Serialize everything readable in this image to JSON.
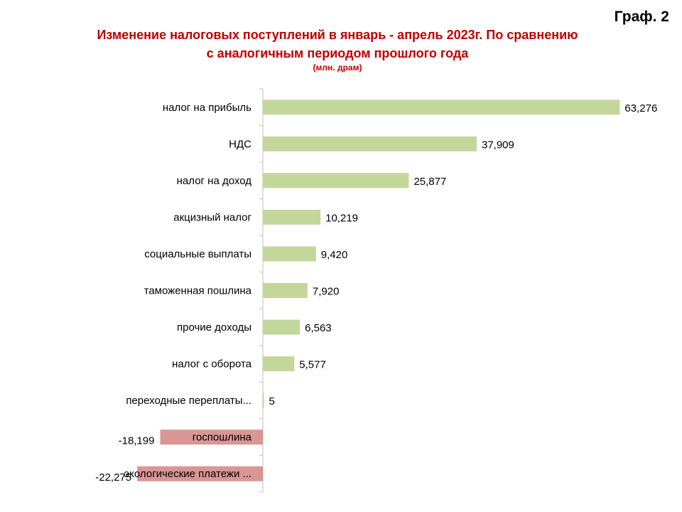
{
  "header": {
    "graf_label": "Граф. 2",
    "title_line1": "Изменение  налоговых поступлений в январь - апрель 2023г. По сравнению",
    "title_line2": "с аналогичным периодом прошлого года",
    "subtitle": "(млн. драм)"
  },
  "chart_data": {
    "type": "bar",
    "orientation": "horizontal",
    "categories": [
      "налог на прибыль",
      "НДС",
      "налог  на доход",
      "акцизный налог",
      "социальные выплаты",
      "таможенная пошлина",
      "прочие  доходы",
      "налог с оборота",
      "переходные переплаты...",
      "госпошлина",
      "экологические платежи ..."
    ],
    "values": [
      63.276,
      37.909,
      25.877,
      10.219,
      9.42,
      7.92,
      6.563,
      5.577,
      0.005,
      -18.199,
      -22.275
    ],
    "value_labels": [
      "63,276",
      "37,909",
      "25,877",
      "10,219",
      "9,420",
      "7,920",
      "6,563",
      "5,577",
      "5",
      "-18,199",
      "-22,275"
    ],
    "colors": {
      "positive": "#c4d79b",
      "negative": "#d99694"
    },
    "xlim": [
      -22.275,
      63.276
    ],
    "grid": false,
    "legend": "none"
  }
}
